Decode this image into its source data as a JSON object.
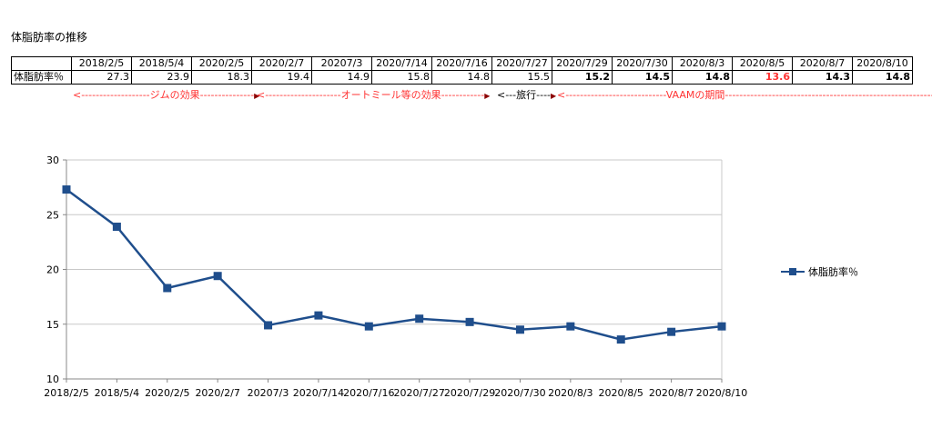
{
  "header": {
    "title": "体脂肪率の推移"
  },
  "table": {
    "row_label": "体脂肪率％",
    "columns": [
      "2018/2/5",
      "2018/5/4",
      "2020/2/5",
      "2020/2/7",
      "20207/3",
      "2020/7/14",
      "2020/7/16",
      "2020/7/27",
      "2020/7/29",
      "2020/7/30",
      "2020/8/3",
      "2020/8/5",
      "2020/8/7",
      "2020/8/10"
    ],
    "values": [
      "27.3",
      "23.9",
      "18.3",
      "19.4",
      "14.9",
      "15.8",
      "14.8",
      "15.5",
      "15.2",
      "14.5",
      "14.8",
      "13.6",
      "14.3",
      "14.8"
    ]
  },
  "annotations": {
    "gym": "<-------------------ジムの効果---------------",
    "oatmeal": "<---------------------オートミール等の効果------------",
    "travel": "<---旅行----",
    "vaam": "<----------------------------VAAMの期間-------------------------------------------------------------->"
  },
  "chart_data": {
    "type": "line",
    "categories": [
      "2018/2/5",
      "2018/5/4",
      "2020/2/5",
      "2020/2/7",
      "20207/3",
      "2020/7/14",
      "2020/7/16",
      "2020/7/27",
      "2020/7/29",
      "2020/7/30",
      "2020/8/3",
      "2020/8/5",
      "2020/8/7",
      "2020/8/10"
    ],
    "series": [
      {
        "name": "体脂肪率％",
        "values": [
          27.3,
          23.9,
          18.3,
          19.4,
          14.9,
          15.8,
          14.8,
          15.5,
          15.2,
          14.5,
          14.8,
          13.6,
          14.3,
          14.8
        ]
      }
    ],
    "ylim": [
      10,
      30
    ],
    "yticks": [
      "10",
      "15",
      "20",
      "25",
      "30"
    ],
    "grid": true,
    "legend": "right",
    "color": "#1f4e8c"
  }
}
